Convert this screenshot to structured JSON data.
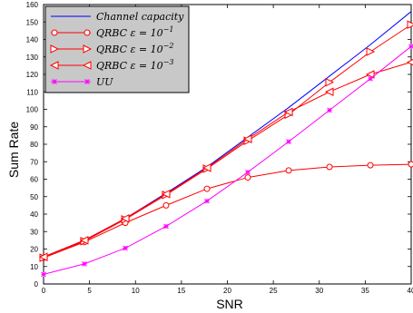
{
  "chart_data": {
    "type": "line",
    "title": "",
    "xlabel": "SNR",
    "ylabel": "Sum Rate",
    "xlim": [
      0,
      40
    ],
    "ylim": [
      0,
      160
    ],
    "xticks": [
      0,
      5,
      10,
      15,
      20,
      25,
      30,
      35,
      40
    ],
    "yticks": [
      0,
      10,
      20,
      30,
      40,
      50,
      60,
      70,
      80,
      90,
      100,
      110,
      120,
      130,
      140,
      150,
      160
    ],
    "grid": false,
    "legend_position": "top-left",
    "series": [
      {
        "name": "Channel capacity",
        "color": "#0000ff",
        "marker": "none",
        "x": [
          0,
          4.44,
          8.89,
          13.33,
          17.78,
          22.22,
          26.67,
          31.11,
          35.56,
          40
        ],
        "y": [
          15.5,
          25,
          37.5,
          52,
          67,
          84,
          101,
          119,
          137,
          156
        ]
      },
      {
        "name": "QRBC ε = 10⁻¹",
        "color": "#ff0000",
        "marker": "circle",
        "x": [
          0,
          4.44,
          8.89,
          13.33,
          17.78,
          22.22,
          26.67,
          31.11,
          35.56,
          40
        ],
        "y": [
          15,
          24,
          35,
          45,
          54.5,
          61,
          65,
          67,
          68,
          68.5
        ]
      },
      {
        "name": "QRBC ε = 10⁻²",
        "color": "#ff0000",
        "marker": "triangle-right",
        "x": [
          0,
          4.44,
          8.89,
          13.33,
          17.78,
          22.22,
          26.67,
          31.11,
          35.56,
          40
        ],
        "y": [
          15,
          24.5,
          37,
          51,
          66,
          82,
          97,
          115.5,
          133,
          148.5
        ]
      },
      {
        "name": "QRBC ε = 10⁻³",
        "color": "#ff0000",
        "marker": "triangle-left",
        "x": [
          0,
          4.44,
          8.89,
          13.33,
          17.78,
          22.22,
          26.67,
          31.11,
          35.56,
          40
        ],
        "y": [
          15.5,
          25,
          37.5,
          51.5,
          66.5,
          83,
          98.5,
          110,
          120,
          127
        ]
      },
      {
        "name": "UU",
        "color": "#ff00ff",
        "marker": "star",
        "x": [
          0,
          4.44,
          8.89,
          13.33,
          17.78,
          22.22,
          26.67,
          31.11,
          35.56,
          40
        ],
        "y": [
          5.5,
          11.5,
          20.5,
          33,
          47.5,
          64,
          81.5,
          99.5,
          117.5,
          136
        ]
      }
    ]
  },
  "legend": {
    "items": [
      {
        "prefix": "Channel capacity",
        "exp": ""
      },
      {
        "prefix": "QRBC ε = 10",
        "exp": "−1"
      },
      {
        "prefix": "QRBC ε = 10",
        "exp": "−2"
      },
      {
        "prefix": "QRBC ε = 10",
        "exp": "−3"
      },
      {
        "prefix": "UU",
        "exp": ""
      }
    ]
  }
}
